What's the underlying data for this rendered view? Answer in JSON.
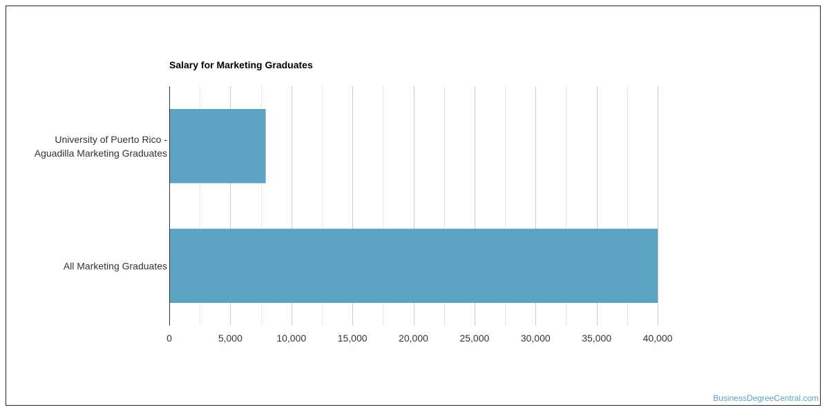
{
  "chart_data": {
    "type": "bar",
    "orientation": "horizontal",
    "title": "Salary for Marketing Graduates",
    "categories": [
      [
        "University of Puerto Rico -",
        "Aguadilla Marketing Graduates"
      ],
      [
        "All Marketing Graduates"
      ]
    ],
    "values": [
      7900,
      40000
    ],
    "xlim": [
      0,
      40000
    ],
    "ticks": [
      0,
      5000,
      10000,
      15000,
      20000,
      25000,
      30000,
      35000,
      40000
    ],
    "tick_labels": [
      "0",
      "5,000",
      "10,000",
      "15,000",
      "20,000",
      "25,000",
      "30,000",
      "35,000",
      "40,000"
    ],
    "xlabel": "",
    "ylabel": "",
    "grid": true,
    "legend": "none",
    "bar_color": "#5ba3c0"
  },
  "watermark": "BusinessDegreeCentral.com"
}
